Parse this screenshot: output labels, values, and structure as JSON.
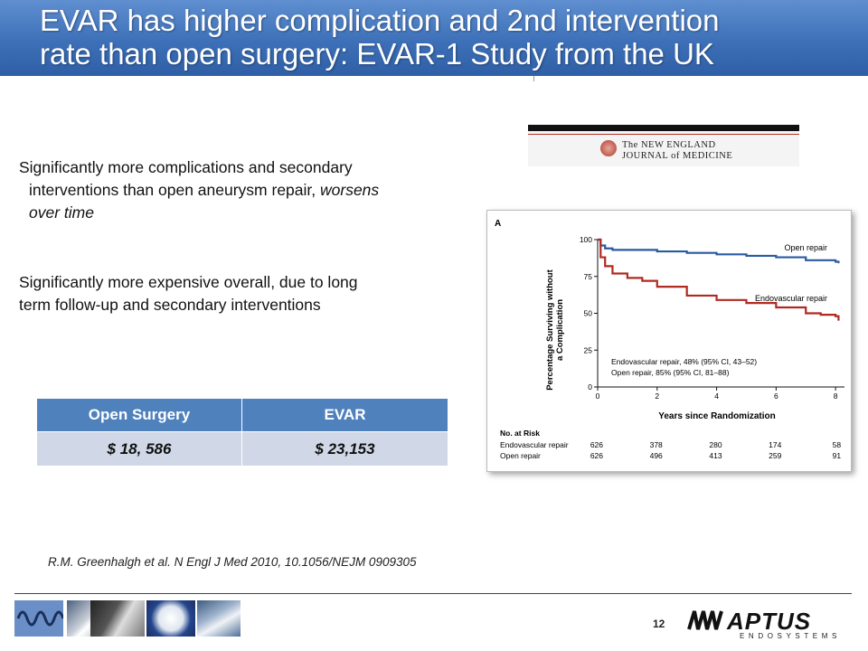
{
  "slide": {
    "title_line1": "EVAR has higher complication and 2nd intervention",
    "title_line2": "rate than open surgery: EVAR-1 Study from the UK",
    "bullet1_line1": "Significantly more complications and secondary",
    "bullet1_line2_plain": "interventions than open aneurysm repair, ",
    "bullet1_line2_italic": "worsens",
    "bullet1_line3_italic": "over time",
    "bullet2_line1": "Significantly more expensive overall, due to long",
    "bullet2_line2": "term follow-up and secondary interventions",
    "citation": "R.M. Greenhalgh et al. N Engl J Med 2010, 10.1056/NEJM 0909305",
    "page_number": "12"
  },
  "cost_table": {
    "headers": [
      "Open Surgery",
      "EVAR"
    ],
    "values": [
      "$ 18, 586",
      "$ 23,153"
    ]
  },
  "nejm_logo": {
    "line1": "The NEW ENGLAND",
    "line2": "JOURNAL of MEDICINE"
  },
  "brand": {
    "name": "APTUS",
    "subtitle": "ENDOSYSTEMS"
  },
  "chart_data": {
    "type": "line",
    "panel_label": "A",
    "xlabel": "Years since Randomization",
    "ylabel_line1": "Percentage Surviving without",
    "ylabel_line2": "a Complication",
    "xlim": [
      0,
      8.3
    ],
    "ylim": [
      0,
      100
    ],
    "x_ticks": [
      0,
      2,
      4,
      6,
      8
    ],
    "y_ticks": [
      0,
      25,
      50,
      75,
      100
    ],
    "series": [
      {
        "name": "Open repair",
        "color": "#2a5aa0",
        "x": [
          0,
          0.1,
          0.25,
          0.5,
          1,
          2,
          3,
          4,
          5,
          6,
          7,
          7.5,
          8,
          8.1
        ],
        "y": [
          100,
          96,
          94,
          93,
          93,
          92,
          91,
          90,
          89,
          88,
          86,
          86,
          85,
          84
        ]
      },
      {
        "name": "Endovascular repair",
        "color": "#b02a22",
        "x": [
          0,
          0.1,
          0.25,
          0.5,
          1,
          1.5,
          2,
          3,
          4,
          5,
          6,
          7,
          7.5,
          8,
          8.1
        ],
        "y": [
          100,
          88,
          82,
          77,
          74,
          72,
          68,
          62,
          59,
          57,
          54,
          50,
          49,
          48,
          45
        ]
      }
    ],
    "annotation_endo": "Endovascular repair, 48% (95% CI, 43–52)",
    "annotation_open": "Open repair, 85% (95% CI, 81–88)",
    "risk_table": {
      "title": "No. at Risk",
      "rows": [
        {
          "label": "Endovascular repair",
          "values": [
            "626",
            "378",
            "280",
            "174",
            "58"
          ]
        },
        {
          "label": "Open repair",
          "values": [
            "626",
            "496",
            "413",
            "259",
            "91"
          ]
        }
      ]
    }
  }
}
